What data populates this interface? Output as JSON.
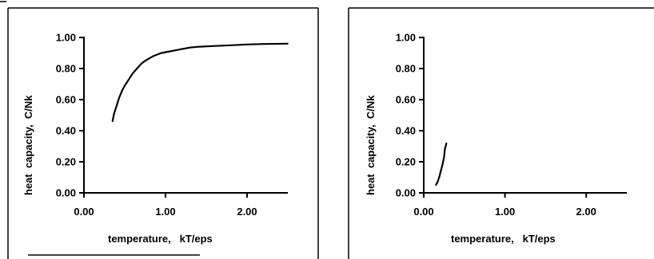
{
  "chart_data": [
    {
      "type": "line",
      "title": "",
      "xlabel": "temperature,   kT/eps",
      "ylabel": "heat  capacity,  C/Nk",
      "xlim": [
        0.0,
        2.5
      ],
      "ylim": [
        0.0,
        1.0
      ],
      "x_ticks": [
        "0.00",
        "1.00",
        "2.00"
      ],
      "y_ticks": [
        "0.00",
        "0.20",
        "0.40",
        "0.60",
        "0.80",
        "1.00"
      ],
      "grid": false,
      "series": [
        {
          "x": [
            0.35,
            0.37,
            0.4,
            0.43,
            0.47,
            0.5,
            0.55,
            0.6,
            0.65,
            0.7,
            0.75,
            0.8,
            0.85,
            0.9,
            0.95,
            1.0,
            1.1,
            1.2,
            1.3,
            1.4,
            1.6,
            1.8,
            2.0,
            2.2,
            2.5
          ],
          "y": [
            0.46,
            0.51,
            0.56,
            0.61,
            0.66,
            0.69,
            0.73,
            0.77,
            0.8,
            0.83,
            0.85,
            0.865,
            0.88,
            0.89,
            0.9,
            0.905,
            0.915,
            0.925,
            0.935,
            0.94,
            0.945,
            0.95,
            0.955,
            0.958,
            0.96
          ]
        }
      ]
    },
    {
      "type": "line",
      "title": "",
      "xlabel": "temperature,   kT/eps",
      "ylabel": "heat  capacity,  C/Nk",
      "xlim": [
        0.0,
        2.5
      ],
      "ylim": [
        0.0,
        1.0
      ],
      "x_ticks": [
        "0.00",
        "1.00",
        "2.00"
      ],
      "y_ticks": [
        "0.00",
        "0.20",
        "0.40",
        "0.60",
        "0.80",
        "1.00"
      ],
      "grid": false,
      "series": [
        {
          "x": [
            0.15,
            0.17,
            0.19,
            0.21,
            0.23,
            0.25,
            0.26,
            0.28
          ],
          "y": [
            0.05,
            0.07,
            0.1,
            0.14,
            0.18,
            0.23,
            0.28,
            0.32
          ]
        }
      ]
    }
  ]
}
